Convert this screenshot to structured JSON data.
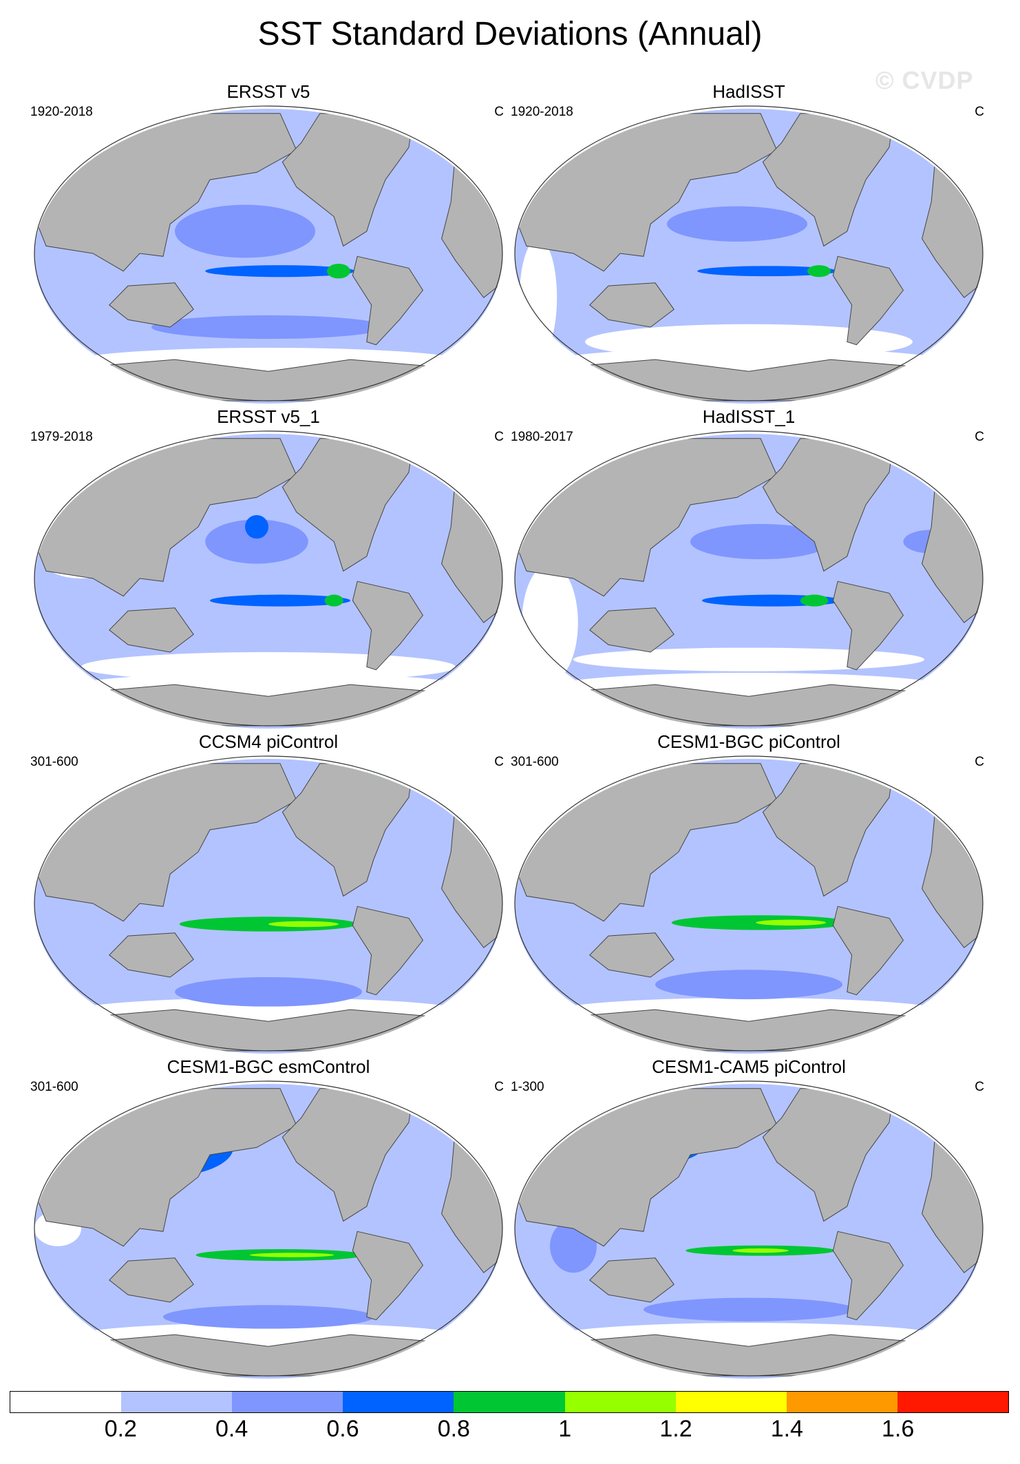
{
  "title": "SST Standard Deviations (Annual)",
  "watermark": "© CVDP",
  "colors": {
    "land": "#b4b4b4",
    "level0": "#ffffff",
    "level1": "#b3c3ff",
    "level2": "#7f96ff",
    "level3": "#0063ff",
    "level4": "#00c633",
    "level5": "#96ff00",
    "level6": "#ffff00",
    "level7": "#ff9900",
    "level8": "#ff1900"
  },
  "panels": [
    {
      "title": "ERSST v5",
      "period": "1920-2018",
      "units": "C"
    },
    {
      "title": "HadISST",
      "period": "1920-2018",
      "units": "C"
    },
    {
      "title": "ERSST v5_1",
      "period": "1979-2018",
      "units": "C"
    },
    {
      "title": "HadISST_1",
      "period": "1980-2017",
      "units": "C"
    },
    {
      "title": "CCSM4 piControl",
      "period": "301-600",
      "units": "C"
    },
    {
      "title": "CESM1-BGC piControl",
      "period": "301-600",
      "units": "C"
    },
    {
      "title": "CESM1-BGC esmControl",
      "period": "301-600",
      "units": "C"
    },
    {
      "title": "CESM1-CAM5 piControl",
      "period": "1-300",
      "units": "C"
    }
  ],
  "colorbar": {
    "labels": [
      "0.2",
      "0.4",
      "0.6",
      "0.8",
      "1",
      "1.2",
      "1.4",
      "1.6"
    ],
    "colors": [
      "#ffffff",
      "#b3c3ff",
      "#7f96ff",
      "#0063ff",
      "#00c633",
      "#96ff00",
      "#ffff00",
      "#ff9900",
      "#ff1900"
    ]
  }
}
